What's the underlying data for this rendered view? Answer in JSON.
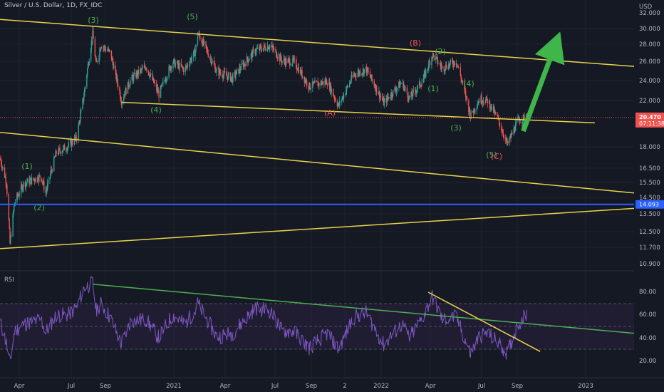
{
  "header": {
    "symbol_text": "Silver / U.S. Dollar, 1D, FX_IDC"
  },
  "colors": {
    "background": "#151924",
    "grid": "#1f2330",
    "up": "#26a69a",
    "down": "#ef5350",
    "trendline": "#e6d34a",
    "support": "#2962ff",
    "rsi_line": "#7e57c2",
    "rsi_band": "#2a2140",
    "rsi_trend": "#4caf50",
    "arrow": "#3fb54a",
    "wave_green": "#4caf50",
    "wave_red": "#ef5350",
    "price_badge": "#ef5350"
  },
  "price_axis": {
    "currency": "USD",
    "ticks": [
      "32.000",
      "30.000",
      "28.000",
      "26.000",
      "24.000",
      "22.000",
      "18.000",
      "16.500",
      "15.500",
      "14.500",
      "13.500",
      "12.500",
      "11.700",
      "10.900"
    ],
    "last_price": "20.470",
    "countdown": "07:11:38",
    "support_level": "14.093"
  },
  "rsi": {
    "title": "RSI",
    "ticks": [
      "80.00",
      "60.00",
      "40.00",
      "20.00"
    ],
    "upper_band": 70,
    "lower_band": 30
  },
  "time_axis": {
    "ticks": [
      "Apr",
      "Jul",
      "Sep",
      "2021",
      "Apr",
      "Jul",
      "Sep",
      "2",
      "2022",
      "Apr",
      "Jul",
      "Sep",
      "2023"
    ]
  },
  "wave_labels": [
    {
      "text": "(1)",
      "color": "green"
    },
    {
      "text": "(2)",
      "color": "green"
    },
    {
      "text": "(3)",
      "color": "green"
    },
    {
      "text": "(4)",
      "color": "green"
    },
    {
      "text": "(5)",
      "color": "green"
    },
    {
      "text": "(A)",
      "color": "red"
    },
    {
      "text": "(B)",
      "color": "red"
    },
    {
      "text": "(2)",
      "color": "green"
    },
    {
      "text": "(1)",
      "color": "green"
    },
    {
      "text": "(4)",
      "color": "green"
    },
    {
      "text": "(3)",
      "color": "green"
    },
    {
      "text": "(5)",
      "color": "green"
    },
    {
      "text": "(C)",
      "color": "red"
    }
  ],
  "chart_data": {
    "type": "candlestick",
    "x_unit": "date",
    "y_unit": "USD",
    "x_range": [
      "2020-03-01",
      "2023-02-15"
    ],
    "price_path": [
      [
        "2020-03-01",
        17.2
      ],
      [
        "2020-03-12",
        15.5
      ],
      [
        "2020-03-18",
        11.9
      ],
      [
        "2020-03-26",
        14.2
      ],
      [
        "2020-04-10",
        15.4
      ],
      [
        "2020-05-10",
        15.9
      ],
      [
        "2020-05-18",
        14.8
      ],
      [
        "2020-06-05",
        17.6
      ],
      [
        "2020-06-25",
        18.1
      ],
      [
        "2020-07-10",
        18.8
      ],
      [
        "2020-07-22",
        22.5
      ],
      [
        "2020-08-06",
        29.2
      ],
      [
        "2020-08-12",
        25.6
      ],
      [
        "2020-08-20",
        28.0
      ],
      [
        "2020-09-05",
        27.0
      ],
      [
        "2020-09-24",
        22.0
      ],
      [
        "2020-10-10",
        24.1
      ],
      [
        "2020-11-05",
        25.5
      ],
      [
        "2020-11-27",
        22.6
      ],
      [
        "2020-12-20",
        26.0
      ],
      [
        "2021-01-10",
        25.1
      ],
      [
        "2021-01-28",
        27.2
      ],
      [
        "2021-02-01",
        29.4
      ],
      [
        "2021-02-15",
        27.5
      ],
      [
        "2021-03-05",
        25.0
      ],
      [
        "2021-04-01",
        24.2
      ],
      [
        "2021-05-10",
        27.3
      ],
      [
        "2021-06-04",
        27.9
      ],
      [
        "2021-06-25",
        26.1
      ],
      [
        "2021-07-15",
        26.0
      ],
      [
        "2021-08-10",
        23.4
      ],
      [
        "2021-09-10",
        23.9
      ],
      [
        "2021-09-29",
        21.5
      ],
      [
        "2021-10-25",
        24.6
      ],
      [
        "2021-11-15",
        25.2
      ],
      [
        "2021-12-15",
        21.8
      ],
      [
        "2022-01-15",
        23.8
      ],
      [
        "2022-01-28",
        22.2
      ],
      [
        "2022-02-20",
        24.0
      ],
      [
        "2022-03-08",
        26.8
      ],
      [
        "2022-03-25",
        25.3
      ],
      [
        "2022-04-18",
        26.1
      ],
      [
        "2022-05-12",
        20.6
      ],
      [
        "2022-05-28",
        22.2
      ],
      [
        "2022-06-10",
        22.0
      ],
      [
        "2022-06-28",
        20.3
      ],
      [
        "2022-07-14",
        18.2
      ],
      [
        "2022-08-01",
        20.2
      ],
      [
        "2022-08-16",
        20.47
      ]
    ],
    "rsi_path": [
      [
        "2020-03-01",
        55
      ],
      [
        "2020-03-12",
        35
      ],
      [
        "2020-03-18",
        18
      ],
      [
        "2020-03-26",
        46
      ],
      [
        "2020-04-10",
        52
      ],
      [
        "2020-05-10",
        56
      ],
      [
        "2020-05-18",
        45
      ],
      [
        "2020-06-05",
        60
      ],
      [
        "2020-06-25",
        60
      ],
      [
        "2020-07-10",
        67
      ],
      [
        "2020-07-22",
        84
      ],
      [
        "2020-08-06",
        88
      ],
      [
        "2020-08-12",
        64
      ],
      [
        "2020-08-20",
        70
      ],
      [
        "2020-09-05",
        58
      ],
      [
        "2020-09-24",
        34
      ],
      [
        "2020-10-10",
        55
      ],
      [
        "2020-11-05",
        56
      ],
      [
        "2020-11-27",
        40
      ],
      [
        "2020-12-20",
        60
      ],
      [
        "2021-01-10",
        52
      ],
      [
        "2021-01-28",
        64
      ],
      [
        "2021-02-01",
        70
      ],
      [
        "2021-02-15",
        58
      ],
      [
        "2021-03-05",
        41
      ],
      [
        "2021-04-01",
        44
      ],
      [
        "2021-05-10",
        66
      ],
      [
        "2021-06-04",
        64
      ],
      [
        "2021-06-25",
        46
      ],
      [
        "2021-07-15",
        46
      ],
      [
        "2021-08-10",
        31
      ],
      [
        "2021-09-10",
        44
      ],
      [
        "2021-09-29",
        30
      ],
      [
        "2021-10-25",
        58
      ],
      [
        "2021-11-15",
        62
      ],
      [
        "2021-12-15",
        34
      ],
      [
        "2022-01-15",
        52
      ],
      [
        "2022-01-28",
        40
      ],
      [
        "2022-02-20",
        58
      ],
      [
        "2022-03-08",
        76
      ],
      [
        "2022-03-25",
        56
      ],
      [
        "2022-04-18",
        58
      ],
      [
        "2022-05-12",
        26
      ],
      [
        "2022-05-28",
        42
      ],
      [
        "2022-06-10",
        44
      ],
      [
        "2022-06-28",
        36
      ],
      [
        "2022-07-14",
        26
      ],
      [
        "2022-08-01",
        52
      ],
      [
        "2022-08-16",
        61
      ]
    ],
    "trendlines": [
      {
        "from": [
          "2020-03-01",
          31.2
        ],
        "to": [
          "2023-02-15",
          25.5
        ]
      },
      {
        "from": [
          "2020-09-24",
          21.85
        ],
        "to": [
          "2022-12-10",
          20.0
        ]
      },
      {
        "from": [
          "2020-03-01",
          19.2
        ],
        "to": [
          "2023-02-15",
          14.8
        ]
      },
      {
        "from": [
          "2020-03-01",
          11.65
        ],
        "to": [
          "2023-02-15",
          13.85
        ]
      }
    ],
    "support_line": 14.093,
    "rsi_trendlines": [
      {
        "from": [
          "2020-08-06",
          87
        ],
        "to": [
          "2023-02-15",
          44
        ]
      },
      {
        "from": [
          "2022-03-01",
          80
        ],
        "to": [
          "2022-09-08",
          28
        ]
      }
    ],
    "projection_arrow": {
      "from": [
        "2022-08-10",
        19.3
      ],
      "to": [
        "2022-10-12",
        29.6
      ]
    }
  }
}
